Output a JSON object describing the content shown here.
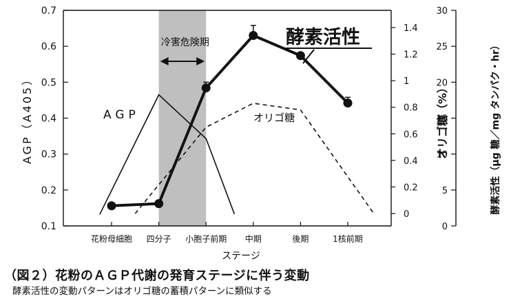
{
  "chart_data": {
    "type": "line",
    "xlabel": "ステージ",
    "categories": [
      "花粉母細胞",
      "四分子",
      "小胞子前期",
      "中期",
      "後期",
      "1核前期"
    ],
    "axes": {
      "left": {
        "label": "AGP（A405）",
        "ylim": [
          0.1,
          0.7
        ],
        "ticks": [
          "0.1",
          "0.2",
          "0.3",
          "0.4",
          "0.5",
          "0.6",
          "0.7"
        ]
      },
      "middle": {
        "label": "オリゴ糖（%）",
        "ylim": [
          -0.05,
          1.45
        ],
        "ticks": [
          "0",
          "0.2",
          "0.4",
          "0.6",
          "0.8",
          "1",
          "1.2",
          "1.4"
        ]
      },
      "right": {
        "label": "酵素活性（μg 糖／mg タンパク・hr）",
        "ylim": [
          0,
          30
        ],
        "ticks": [
          "0",
          "5",
          "10",
          "15",
          "20",
          "25",
          "30"
        ]
      }
    },
    "shaded_region": {
      "label": "冷害危険期",
      "from_category": "四分子",
      "to_category": "小胞子前期"
    },
    "series": [
      {
        "name": "酵素活性",
        "axis": "right",
        "style": "thick line with filled circle markers and error bars",
        "x": [
          0,
          1,
          2,
          3,
          4,
          5
        ],
        "values": [
          2.8,
          3.1,
          19.2,
          26.5,
          23.7,
          17.1
        ],
        "errors": [
          0,
          0,
          0.8,
          1.4,
          0,
          0.8
        ]
      },
      {
        "name": "AGP",
        "axis": "left",
        "style": "thin solid line",
        "x": [
          -0.25,
          1.0,
          2.0,
          2.6
        ],
        "values": [
          0.132,
          0.465,
          0.343,
          0.133
        ]
      },
      {
        "name": "オリゴ糖",
        "axis": "middle",
        "style": "dashed line",
        "x": [
          0.5,
          2.0,
          3.0,
          4.0,
          5.55
        ],
        "values": [
          0.0,
          0.65,
          0.83,
          0.78,
          0.0
        ]
      }
    ]
  },
  "caption": {
    "line1": "（図２）花粉のＡＧＰ代謝の発育ステージに伴う変動",
    "line2": "酵素活性の変動パターンはオリゴ糖の蓄積パターンに類似する"
  },
  "colors": {
    "line": "#111111",
    "shade": "#bfbfbf",
    "background": "#ffffff"
  }
}
